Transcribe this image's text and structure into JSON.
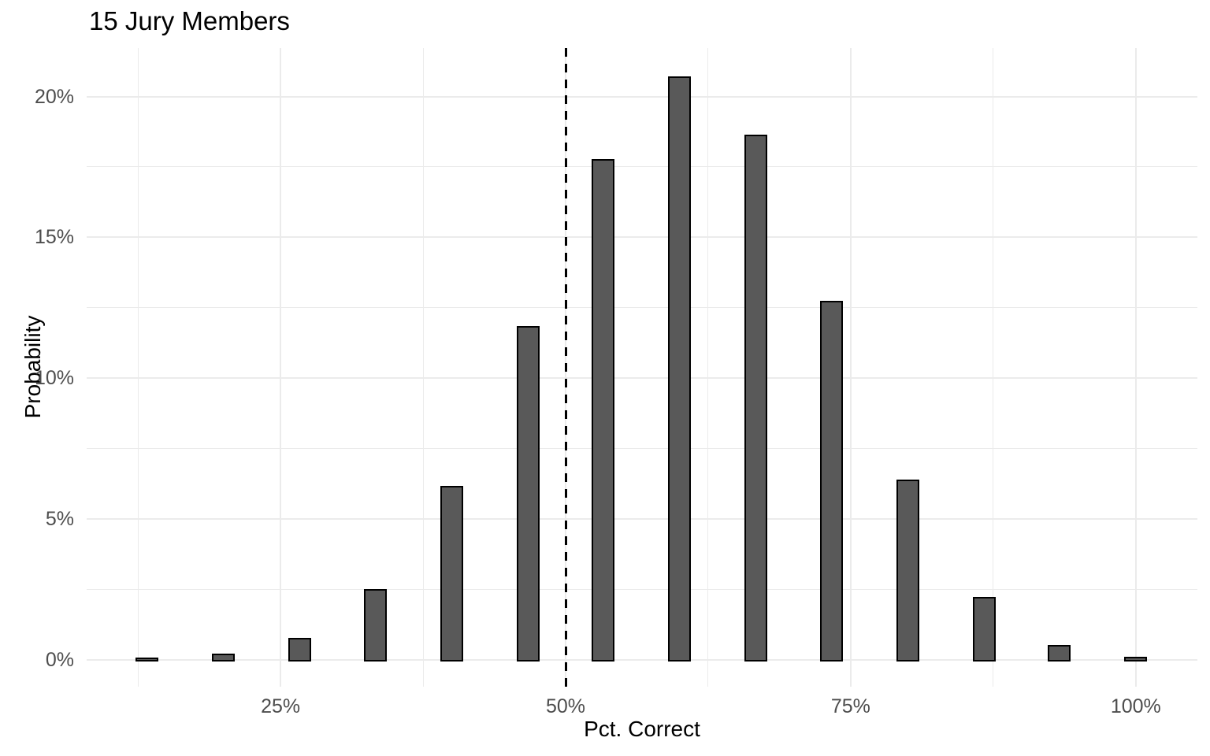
{
  "chart_data": {
    "type": "bar",
    "title": "15 Jury Members",
    "xlabel": "Pct. Correct",
    "ylabel": "Probability",
    "x_pct": [
      13.3,
      20,
      26.7,
      33.3,
      40,
      46.7,
      53.3,
      60,
      66.7,
      73.3,
      80,
      86.7,
      93.3,
      100
    ],
    "values_pct": [
      0.03,
      0.16,
      0.74,
      2.45,
      6.12,
      11.81,
      17.71,
      20.66,
      18.59,
      12.68,
      6.34,
      2.19,
      0.47,
      0.05
    ],
    "bar_width_pct": 2.0,
    "x_ticks": [
      {
        "pct": 25,
        "label": "25%"
      },
      {
        "pct": 50,
        "label": "50%"
      },
      {
        "pct": 75,
        "label": "75%"
      },
      {
        "pct": 100,
        "label": "100%"
      }
    ],
    "y_ticks": [
      {
        "pct": 0,
        "label": "0%"
      },
      {
        "pct": 5,
        "label": "5%"
      },
      {
        "pct": 10,
        "label": "10%"
      },
      {
        "pct": 15,
        "label": "15%"
      },
      {
        "pct": 20,
        "label": "20%"
      }
    ],
    "x_minor_gridlines_pct": [
      12.5,
      37.5,
      62.5,
      87.5
    ],
    "y_minor_gridlines_pct": [
      2.5,
      7.5,
      12.5,
      17.5
    ],
    "reference_line": {
      "x_pct": 50,
      "style": "dashed",
      "color": "#000000"
    },
    "xlim": [
      8.0,
      105.4
    ],
    "ylim": [
      -0.95,
      21.72
    ],
    "grid": "on",
    "legend_position": "none",
    "colors": {
      "bar_fill": "#595959",
      "bar_border": "#000000",
      "gridline": "#ebebeb",
      "tick_label": "#4d4d4d",
      "axis_text": "#000000",
      "background": "#ffffff"
    }
  }
}
